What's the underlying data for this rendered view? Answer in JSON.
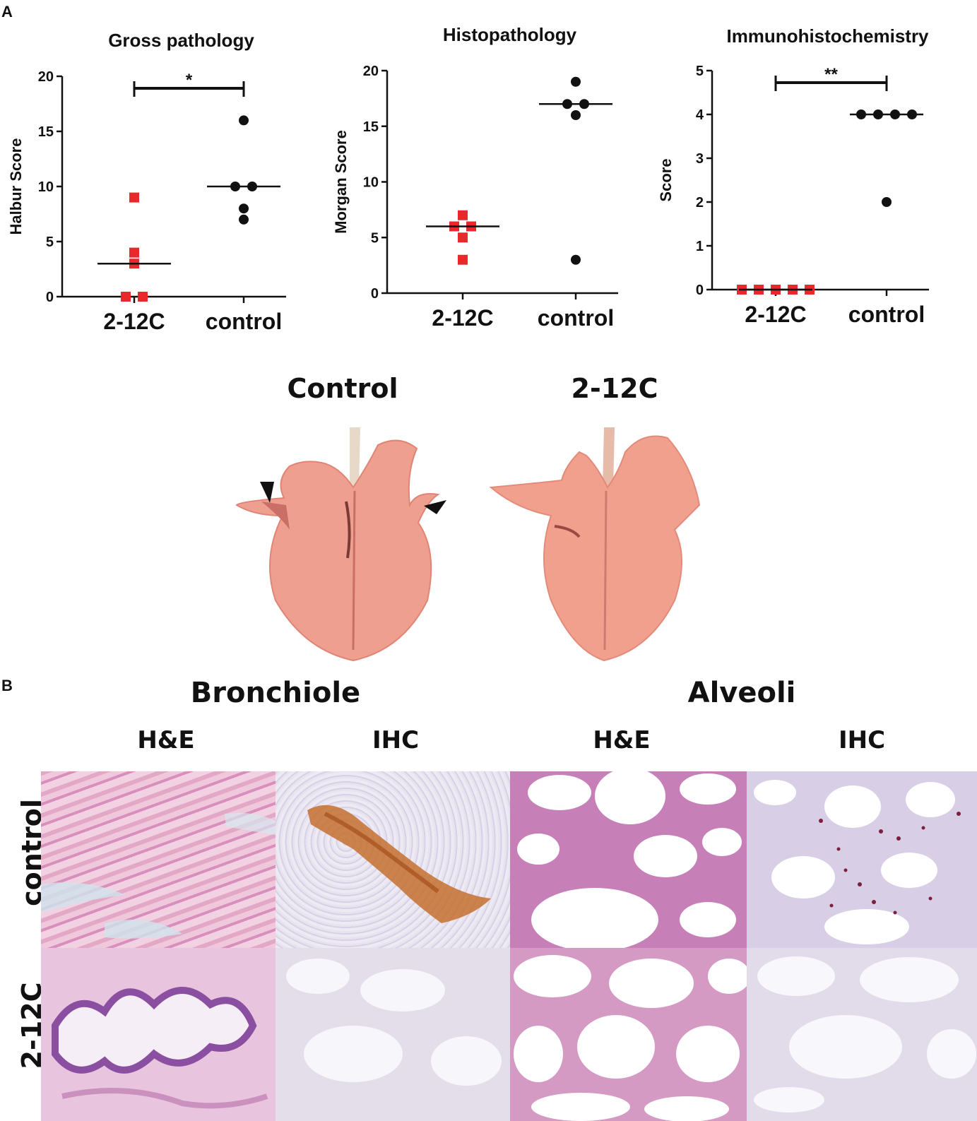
{
  "panels": {
    "a": "A",
    "b": "B"
  },
  "chart_data": [
    {
      "type": "scatter",
      "title": "Gross pathology",
      "ylabel": "Halbur Score",
      "categories": [
        "2-12C",
        "control"
      ],
      "ylim": [
        0,
        20
      ],
      "yticks": [
        0,
        5,
        10,
        15,
        20
      ],
      "series": [
        {
          "name": "2-12C",
          "marker": "square",
          "color": "#e8282b",
          "values": [
            9,
            4,
            3,
            0,
            0
          ],
          "median": 3
        },
        {
          "name": "control",
          "marker": "circle",
          "color": "#111111",
          "values": [
            16,
            10,
            10,
            8,
            7
          ],
          "median": 10
        }
      ],
      "significance": "*"
    },
    {
      "type": "scatter",
      "title": "Histopathology",
      "ylabel": "Morgan Score",
      "categories": [
        "2-12C",
        "control"
      ],
      "ylim": [
        0,
        20
      ],
      "yticks": [
        0,
        5,
        10,
        15,
        20
      ],
      "series": [
        {
          "name": "2-12C",
          "marker": "square",
          "color": "#e8282b",
          "values": [
            7,
            6,
            6,
            5,
            3
          ],
          "median": 6
        },
        {
          "name": "control",
          "marker": "circle",
          "color": "#111111",
          "values": [
            19,
            17,
            17,
            16,
            3
          ],
          "median": 17
        }
      ],
      "significance": ""
    },
    {
      "type": "scatter",
      "title": "Immunohistochemistry",
      "ylabel": "Score",
      "categories": [
        "2-12C",
        "control"
      ],
      "ylim": [
        0,
        5
      ],
      "yticks": [
        0,
        1,
        2,
        3,
        4,
        5
      ],
      "series": [
        {
          "name": "2-12C",
          "marker": "square",
          "color": "#e8282b",
          "values": [
            0,
            0,
            0,
            0,
            0
          ],
          "median": 0
        },
        {
          "name": "control",
          "marker": "circle",
          "color": "#111111",
          "values": [
            4,
            4,
            4,
            4,
            2
          ],
          "median": 4
        }
      ],
      "significance": "**"
    }
  ],
  "gross": {
    "control_label": "Control",
    "treated_label": "2-12C"
  },
  "histology": {
    "group_bronchiole": "Bronchiole",
    "group_alveoli": "Alveoli",
    "columns": [
      "H&E",
      "IHC",
      "H&E",
      "IHC"
    ],
    "rows": [
      "control",
      "2-12C"
    ]
  },
  "colors": {
    "he_pink": "#e7b3cf",
    "ihc_brown": "#c26a2a",
    "lung_pink": "#eea08f",
    "marker_red": "#e8282b"
  }
}
